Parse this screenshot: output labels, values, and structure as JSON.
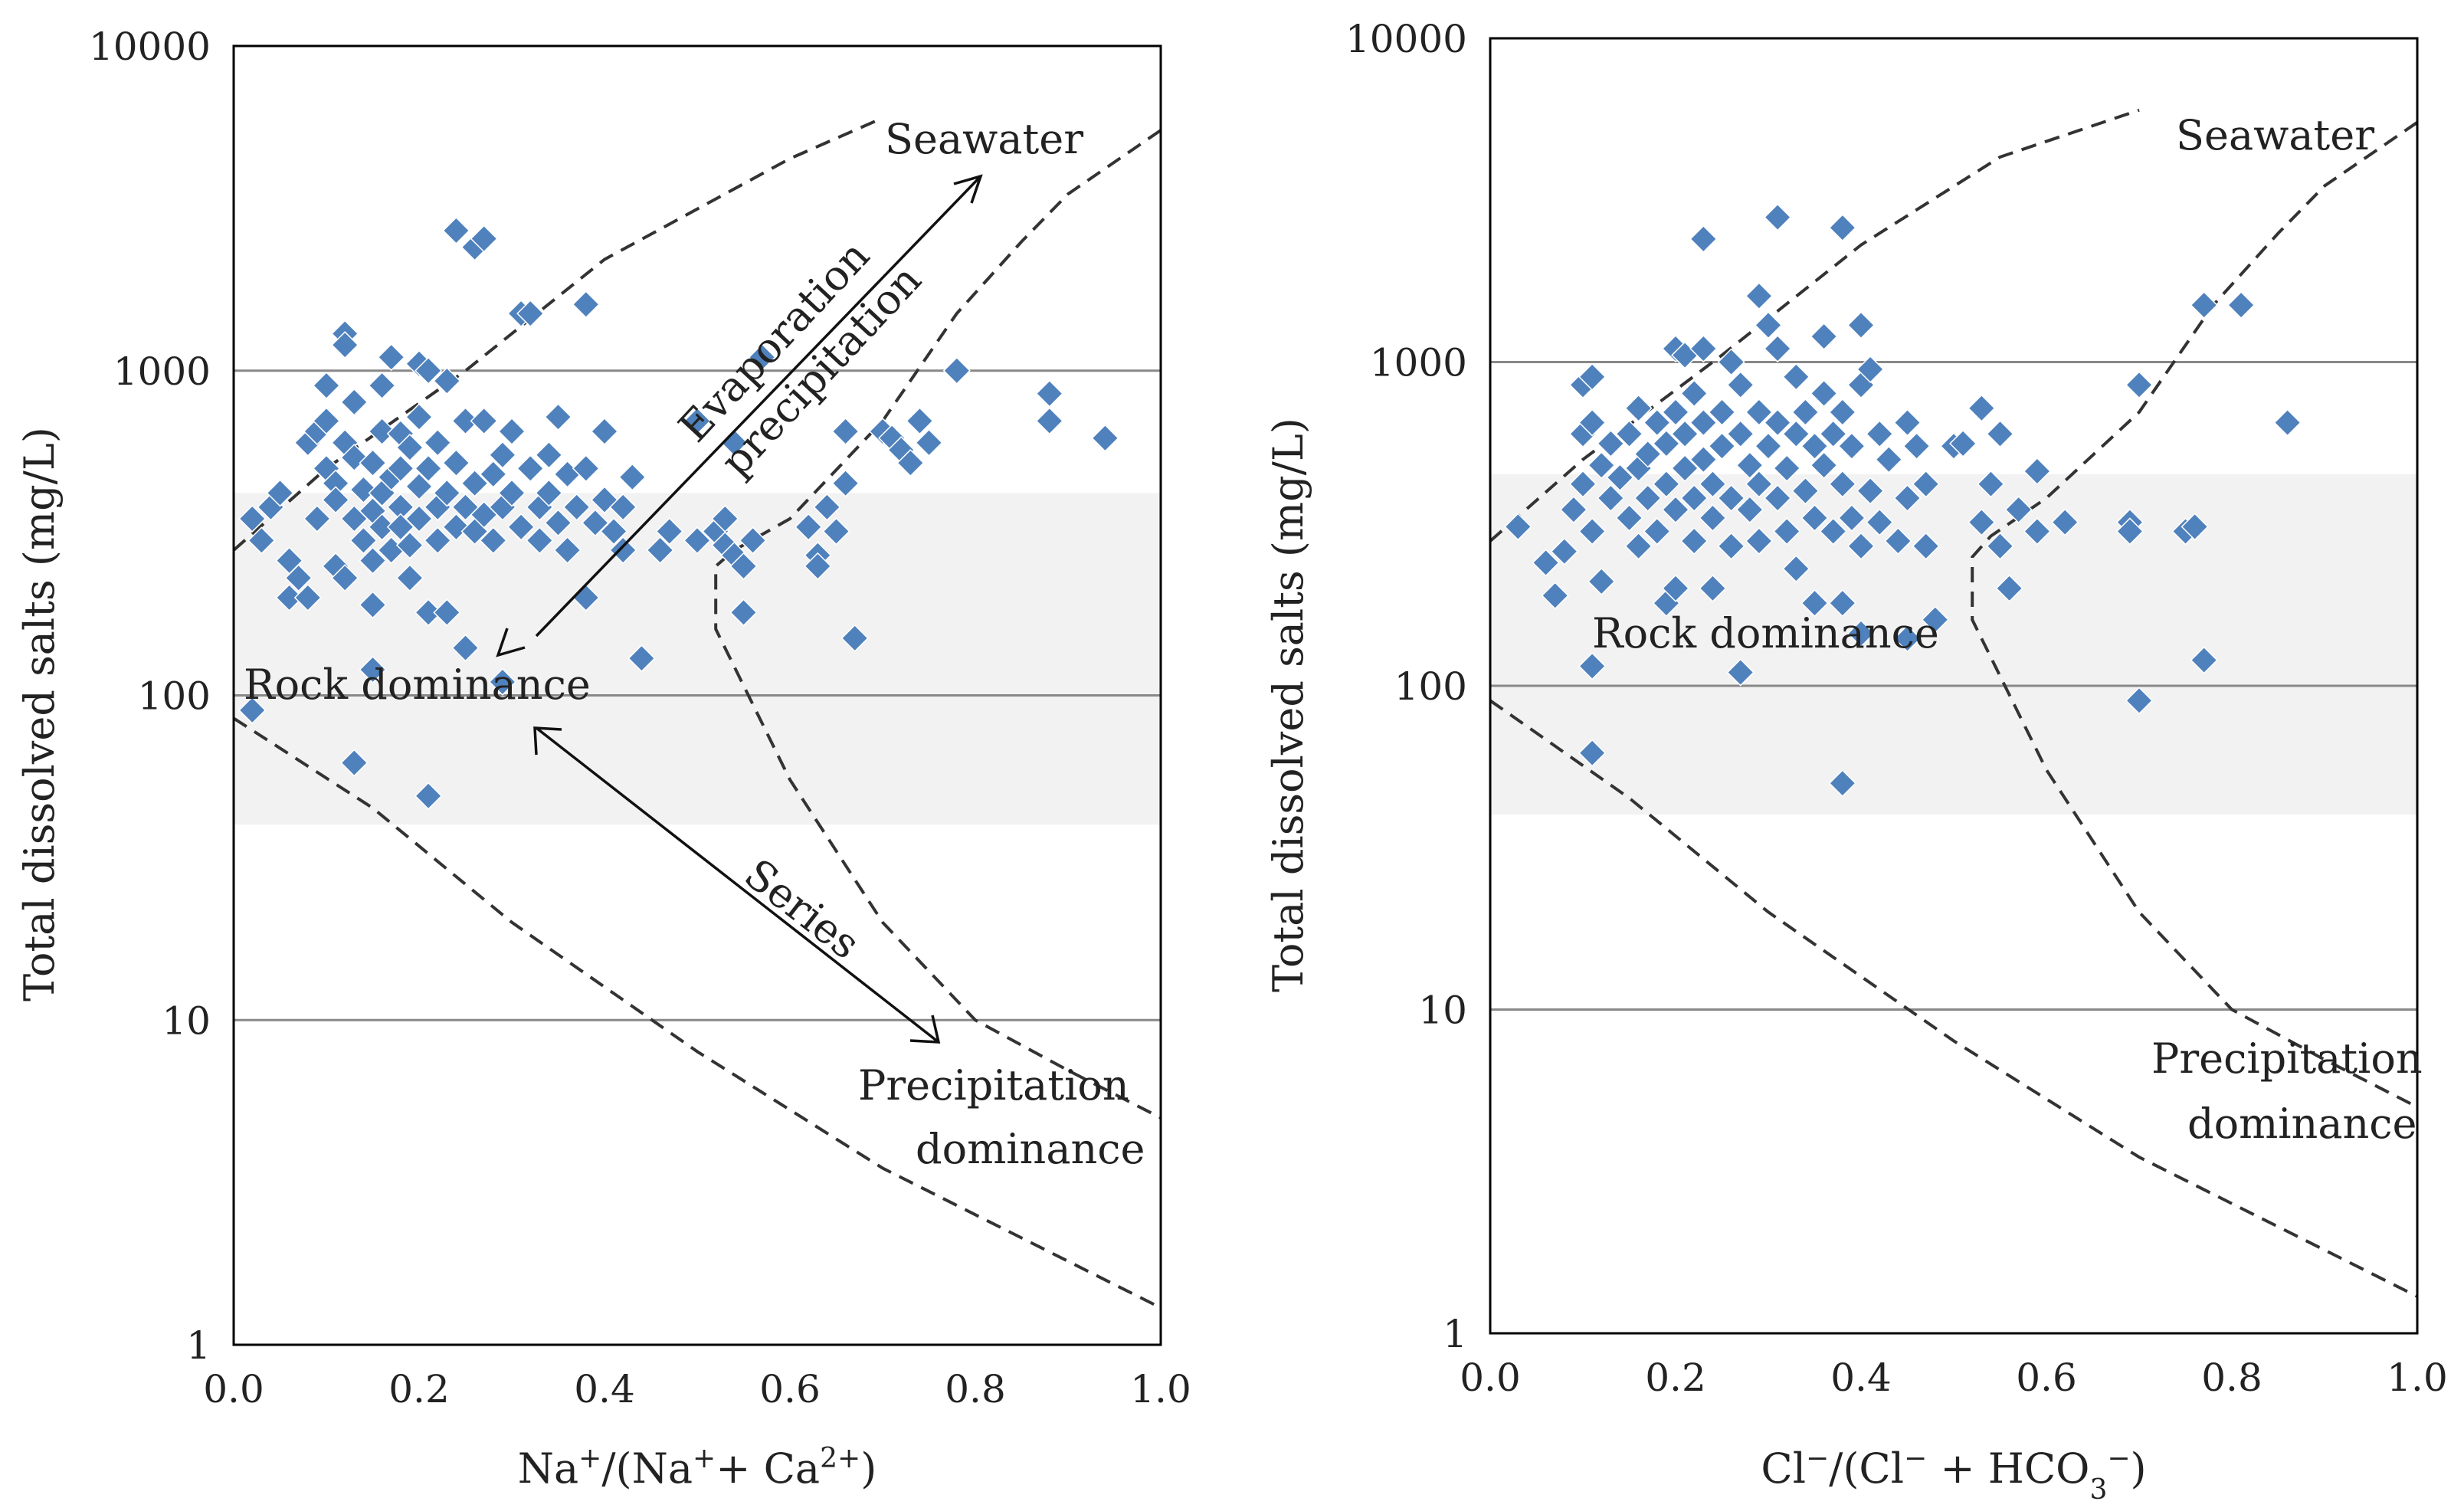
{
  "chart_data": [
    {
      "type": "scatter",
      "xscale": "linear",
      "yscale": "log",
      "xlim": [
        0.0,
        1.0
      ],
      "ylim": [
        1,
        10000
      ],
      "xlabel_parts": [
        "Na",
        "+",
        "/(Na",
        "+",
        "+ Ca",
        "2+",
        ")"
      ],
      "ylabel": "Total dissolved salts (mg/L)",
      "x_ticks": [
        "0.0",
        "0.2",
        "0.4",
        "0.6",
        "0.8",
        "1.0"
      ],
      "y_ticks": [
        "1",
        "10",
        "100",
        "1000",
        "10000"
      ],
      "grid": "horizontal",
      "shaded_band": [
        40,
        420
      ],
      "labels": {
        "seawater": "Seawater",
        "evaporation": "Evaporation",
        "precipitation": "precipitation",
        "rock": "Rock dominance",
        "series": "Series",
        "precip1": "Precipitation",
        "precip2": "dominance"
      },
      "colors": {
        "marker": "#4f81bd",
        "grid": "#888888",
        "band": "#f2f2f2",
        "line": "#333333"
      },
      "boundary_upper": [
        [
          0.0,
          280
        ],
        [
          0.1,
          500
        ],
        [
          0.25,
          1000
        ],
        [
          0.4,
          2200
        ],
        [
          0.6,
          4500
        ],
        [
          0.7,
          6000
        ]
      ],
      "boundary_lower": [
        [
          0.0,
          85
        ],
        [
          0.15,
          45
        ],
        [
          0.3,
          20
        ],
        [
          0.5,
          8
        ],
        [
          0.7,
          3.5
        ],
        [
          1.0,
          1.3
        ]
      ],
      "boundary_right": [
        [
          1.0,
          5500
        ],
        [
          0.9,
          3500
        ],
        [
          0.85,
          2500
        ],
        [
          0.78,
          1500
        ],
        [
          0.7,
          700
        ],
        [
          0.6,
          350
        ],
        [
          0.54,
          280
        ],
        [
          0.52,
          250
        ],
        [
          0.52,
          160
        ],
        [
          0.6,
          55
        ],
        [
          0.7,
          20
        ],
        [
          0.8,
          10
        ],
        [
          0.9,
          7
        ],
        [
          1.0,
          5
        ]
      ],
      "points": [
        [
          0.02,
          350
        ],
        [
          0.02,
          90
        ],
        [
          0.03,
          300
        ],
        [
          0.04,
          380
        ],
        [
          0.05,
          420
        ],
        [
          0.06,
          260
        ],
        [
          0.06,
          200
        ],
        [
          0.07,
          230
        ],
        [
          0.08,
          200
        ],
        [
          0.08,
          600
        ],
        [
          0.09,
          350
        ],
        [
          0.09,
          650
        ],
        [
          0.1,
          700
        ],
        [
          0.1,
          900
        ],
        [
          0.1,
          500
        ],
        [
          0.11,
          450
        ],
        [
          0.11,
          250
        ],
        [
          0.11,
          400
        ],
        [
          0.12,
          1300
        ],
        [
          0.12,
          1200
        ],
        [
          0.12,
          600
        ],
        [
          0.12,
          230
        ],
        [
          0.13,
          540
        ],
        [
          0.13,
          800
        ],
        [
          0.13,
          350
        ],
        [
          0.13,
          62
        ],
        [
          0.14,
          430
        ],
        [
          0.14,
          300
        ],
        [
          0.15,
          520
        ],
        [
          0.15,
          370
        ],
        [
          0.15,
          260
        ],
        [
          0.15,
          190
        ],
        [
          0.15,
          120
        ],
        [
          0.16,
          900
        ],
        [
          0.16,
          650
        ],
        [
          0.16,
          420
        ],
        [
          0.16,
          330
        ],
        [
          0.17,
          1100
        ],
        [
          0.17,
          470
        ],
        [
          0.17,
          280
        ],
        [
          0.18,
          640
        ],
        [
          0.18,
          380
        ],
        [
          0.18,
          500
        ],
        [
          0.18,
          330
        ],
        [
          0.19,
          580
        ],
        [
          0.19,
          290
        ],
        [
          0.19,
          230
        ],
        [
          0.2,
          1050
        ],
        [
          0.2,
          720
        ],
        [
          0.2,
          440
        ],
        [
          0.2,
          350
        ],
        [
          0.21,
          1000
        ],
        [
          0.21,
          500
        ],
        [
          0.21,
          180
        ],
        [
          0.21,
          49
        ],
        [
          0.22,
          380
        ],
        [
          0.22,
          300
        ],
        [
          0.22,
          600
        ],
        [
          0.23,
          930
        ],
        [
          0.23,
          420
        ],
        [
          0.23,
          180
        ],
        [
          0.24,
          2700
        ],
        [
          0.24,
          520
        ],
        [
          0.24,
          330
        ],
        [
          0.25,
          700
        ],
        [
          0.25,
          380
        ],
        [
          0.25,
          140
        ],
        [
          0.26,
          2400
        ],
        [
          0.26,
          450
        ],
        [
          0.26,
          320
        ],
        [
          0.27,
          2550
        ],
        [
          0.27,
          700
        ],
        [
          0.27,
          360
        ],
        [
          0.28,
          480
        ],
        [
          0.28,
          300
        ],
        [
          0.29,
          550
        ],
        [
          0.29,
          380
        ],
        [
          0.29,
          110
        ],
        [
          0.3,
          420
        ],
        [
          0.3,
          650
        ],
        [
          0.31,
          1500
        ],
        [
          0.31,
          330
        ],
        [
          0.32,
          1500
        ],
        [
          0.32,
          500
        ],
        [
          0.33,
          380
        ],
        [
          0.33,
          300
        ],
        [
          0.34,
          550
        ],
        [
          0.34,
          420
        ],
        [
          0.35,
          720
        ],
        [
          0.35,
          340
        ],
        [
          0.36,
          480
        ],
        [
          0.36,
          280
        ],
        [
          0.37,
          380
        ],
        [
          0.38,
          1600
        ],
        [
          0.38,
          500
        ],
        [
          0.38,
          200
        ],
        [
          0.39,
          340
        ],
        [
          0.4,
          650
        ],
        [
          0.4,
          400
        ],
        [
          0.41,
          320
        ],
        [
          0.42,
          380
        ],
        [
          0.42,
          280
        ],
        [
          0.43,
          470
        ],
        [
          0.44,
          130
        ],
        [
          0.46,
          280
        ],
        [
          0.47,
          320
        ],
        [
          0.5,
          700
        ],
        [
          0.5,
          300
        ],
        [
          0.52,
          320
        ],
        [
          0.53,
          290
        ],
        [
          0.53,
          350
        ],
        [
          0.54,
          600
        ],
        [
          0.54,
          270
        ],
        [
          0.55,
          250
        ],
        [
          0.55,
          180
        ],
        [
          0.56,
          300
        ],
        [
          0.57,
          1100
        ],
        [
          0.62,
          330
        ],
        [
          0.63,
          270
        ],
        [
          0.63,
          250
        ],
        [
          0.64,
          380
        ],
        [
          0.65,
          320
        ],
        [
          0.66,
          650
        ],
        [
          0.66,
          450
        ],
        [
          0.67,
          150
        ],
        [
          0.7,
          650
        ],
        [
          0.71,
          620
        ],
        [
          0.72,
          570
        ],
        [
          0.73,
          520
        ],
        [
          0.74,
          700
        ],
        [
          0.75,
          600
        ],
        [
          0.78,
          1000
        ],
        [
          0.88,
          850
        ],
        [
          0.88,
          700
        ],
        [
          0.94,
          620
        ]
      ]
    },
    {
      "type": "scatter",
      "xscale": "linear",
      "yscale": "log",
      "xlim": [
        0.0,
        1.0
      ],
      "ylim": [
        1,
        10000
      ],
      "xlabel_parts": [
        "Cl",
        "−",
        "/(Cl",
        "−",
        " + HCO",
        "3",
        "−",
        ")"
      ],
      "ylabel": "Total dissolved salts (mg/L)",
      "x_ticks": [
        "0.0",
        "0.2",
        "0.4",
        "0.6",
        "0.8",
        "1.0"
      ],
      "y_ticks": [
        "1",
        "10",
        "100",
        "1000",
        "10000"
      ],
      "grid": "horizontal",
      "shaded_band": [
        40,
        450
      ],
      "labels": {
        "seawater": "Seawater",
        "rock": "Rock dominance",
        "precip1": "Precipitation",
        "precip2": "dominance"
      },
      "colors": {
        "marker": "#4f81bd",
        "grid": "#888888",
        "band": "#f2f2f2",
        "line": "#333333"
      },
      "boundary_upper": [
        [
          0.0,
          280
        ],
        [
          0.1,
          500
        ],
        [
          0.25,
          1050
        ],
        [
          0.4,
          2300
        ],
        [
          0.55,
          4300
        ],
        [
          0.7,
          6000
        ]
      ],
      "boundary_lower": [
        [
          0.0,
          90
        ],
        [
          0.15,
          45
        ],
        [
          0.3,
          20
        ],
        [
          0.5,
          8
        ],
        [
          0.7,
          3.5
        ],
        [
          1.0,
          1.3
        ]
      ],
      "boundary_right": [
        [
          1.0,
          5500
        ],
        [
          0.9,
          3500
        ],
        [
          0.85,
          2500
        ],
        [
          0.78,
          1500
        ],
        [
          0.7,
          700
        ],
        [
          0.6,
          380
        ],
        [
          0.54,
          290
        ],
        [
          0.52,
          250
        ],
        [
          0.52,
          160
        ],
        [
          0.6,
          55
        ],
        [
          0.7,
          20
        ],
        [
          0.8,
          10
        ],
        [
          0.9,
          7
        ],
        [
          1.0,
          5
        ]
      ],
      "points": [
        [
          0.03,
          310
        ],
        [
          0.06,
          240
        ],
        [
          0.07,
          190
        ],
        [
          0.08,
          260
        ],
        [
          0.09,
          350
        ],
        [
          0.1,
          850
        ],
        [
          0.1,
          600
        ],
        [
          0.1,
          420
        ],
        [
          0.11,
          900
        ],
        [
          0.11,
          650
        ],
        [
          0.11,
          300
        ],
        [
          0.11,
          115
        ],
        [
          0.11,
          62
        ],
        [
          0.12,
          480
        ],
        [
          0.12,
          210
        ],
        [
          0.13,
          560
        ],
        [
          0.13,
          380
        ],
        [
          0.14,
          440
        ],
        [
          0.15,
          600
        ],
        [
          0.15,
          330
        ],
        [
          0.16,
          720
        ],
        [
          0.16,
          470
        ],
        [
          0.16,
          270
        ],
        [
          0.17,
          520
        ],
        [
          0.17,
          380
        ],
        [
          0.18,
          650
        ],
        [
          0.18,
          300
        ],
        [
          0.19,
          560
        ],
        [
          0.19,
          420
        ],
        [
          0.19,
          180
        ],
        [
          0.2,
          1100
        ],
        [
          0.2,
          700
        ],
        [
          0.2,
          350
        ],
        [
          0.2,
          200
        ],
        [
          0.21,
          1050
        ],
        [
          0.21,
          600
        ],
        [
          0.21,
          470
        ],
        [
          0.22,
          800
        ],
        [
          0.22,
          380
        ],
        [
          0.22,
          280
        ],
        [
          0.23,
          2400
        ],
        [
          0.23,
          1100
        ],
        [
          0.23,
          650
        ],
        [
          0.23,
          500
        ],
        [
          0.24,
          420
        ],
        [
          0.24,
          330
        ],
        [
          0.24,
          200
        ],
        [
          0.25,
          700
        ],
        [
          0.25,
          550
        ],
        [
          0.26,
          1000
        ],
        [
          0.26,
          380
        ],
        [
          0.26,
          270
        ],
        [
          0.27,
          110
        ],
        [
          0.27,
          850
        ],
        [
          0.27,
          600
        ],
        [
          0.28,
          480
        ],
        [
          0.28,
          350
        ],
        [
          0.29,
          1600
        ],
        [
          0.29,
          700
        ],
        [
          0.29,
          420
        ],
        [
          0.29,
          280
        ],
        [
          0.3,
          1300
        ],
        [
          0.3,
          550
        ],
        [
          0.31,
          2800
        ],
        [
          0.31,
          1100
        ],
        [
          0.31,
          650
        ],
        [
          0.31,
          380
        ],
        [
          0.32,
          470
        ],
        [
          0.32,
          300
        ],
        [
          0.33,
          900
        ],
        [
          0.33,
          600
        ],
        [
          0.33,
          230
        ],
        [
          0.34,
          700
        ],
        [
          0.34,
          400
        ],
        [
          0.35,
          550
        ],
        [
          0.35,
          330
        ],
        [
          0.35,
          180
        ],
        [
          0.36,
          1200
        ],
        [
          0.36,
          800
        ],
        [
          0.36,
          480
        ],
        [
          0.37,
          600
        ],
        [
          0.37,
          300
        ],
        [
          0.38,
          2600
        ],
        [
          0.38,
          700
        ],
        [
          0.38,
          420
        ],
        [
          0.38,
          180
        ],
        [
          0.38,
          50
        ],
        [
          0.39,
          550
        ],
        [
          0.39,
          330
        ],
        [
          0.4,
          1300
        ],
        [
          0.4,
          850
        ],
        [
          0.4,
          270
        ],
        [
          0.4,
          145
        ],
        [
          0.41,
          950
        ],
        [
          0.41,
          400
        ],
        [
          0.42,
          600
        ],
        [
          0.42,
          320
        ],
        [
          0.43,
          500
        ],
        [
          0.44,
          280
        ],
        [
          0.45,
          650
        ],
        [
          0.45,
          380
        ],
        [
          0.45,
          140
        ],
        [
          0.46,
          550
        ],
        [
          0.47,
          420
        ],
        [
          0.47,
          270
        ],
        [
          0.48,
          160
        ],
        [
          0.5,
          550
        ],
        [
          0.51,
          560
        ],
        [
          0.53,
          720
        ],
        [
          0.53,
          320
        ],
        [
          0.54,
          420
        ],
        [
          0.55,
          600
        ],
        [
          0.55,
          270
        ],
        [
          0.56,
          200
        ],
        [
          0.57,
          350
        ],
        [
          0.59,
          460
        ],
        [
          0.59,
          300
        ],
        [
          0.62,
          320
        ],
        [
          0.69,
          320
        ],
        [
          0.69,
          300
        ],
        [
          0.7,
          850
        ],
        [
          0.7,
          90
        ],
        [
          0.75,
          300
        ],
        [
          0.76,
          310
        ],
        [
          0.77,
          1500
        ],
        [
          0.77,
          120
        ],
        [
          0.81,
          1500
        ],
        [
          0.86,
          650
        ]
      ]
    }
  ]
}
